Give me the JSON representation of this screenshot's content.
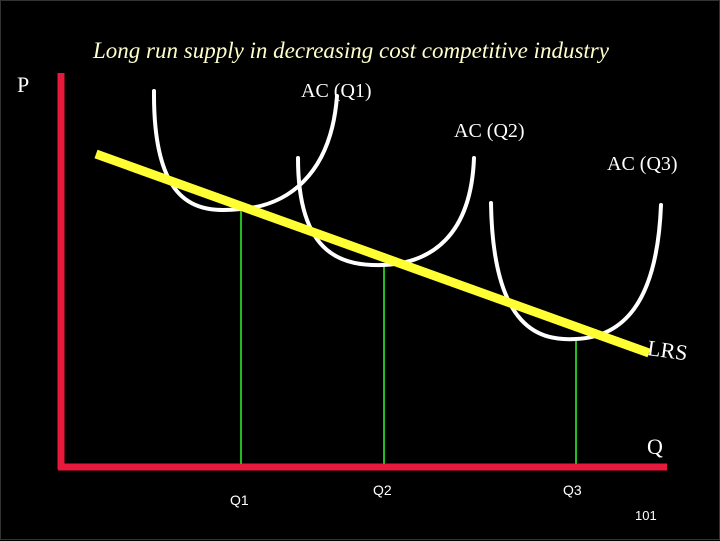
{
  "title": "Long run supply in decreasing cost competitive industry",
  "axes": {
    "y_label": "P",
    "x_label": "Q"
  },
  "curves": [
    {
      "label": "AC (Q1)",
      "min_label": "Q1"
    },
    {
      "label": "AC (Q2)",
      "min_label": "Q2"
    },
    {
      "label": "AC (Q3)",
      "min_label": "Q3"
    }
  ],
  "lrs_label": "LRS",
  "page_number": "101",
  "colors": {
    "background": "#000000",
    "axis": "#e8193c",
    "lrs": "#ffff33",
    "ac_curve": "#ffffff",
    "drop_line": "#22bb22",
    "text": "#ffffff"
  }
}
